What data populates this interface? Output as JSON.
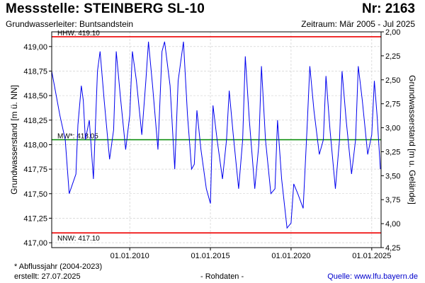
{
  "header": {
    "station": "Messstelle: STEINBERG  SL-10",
    "number": "Nr: 2163",
    "aquifer": "Grundwasserleiter: Buntsandstein",
    "period": "Zeitraum: Mär 2005 - Jul 2025"
  },
  "footer": {
    "footnote": "* Abflussjahr (2004-2023)",
    "created": "erstellt:  27.07.2025",
    "rawdata": "- Rohdaten -",
    "source": "Quelle: www.lfu.bayern.de"
  },
  "colors": {
    "series": "#0000ee",
    "max_line": "#ee0000",
    "mean_line": "#008800",
    "min_line": "#ee0000",
    "grid": "#c8c8c8"
  },
  "chart_data": {
    "type": "line",
    "xlabel": "",
    "ylabel": "Grundwasserstand [m ü. NN]",
    "y2label": "Grundwasserstand [m u. Gelände]",
    "xlim": [
      "2005-03-01",
      "2025-07-31"
    ],
    "ylim": [
      416.95,
      419.15
    ],
    "y2lim": [
      4.25,
      2.0
    ],
    "x_ticks": [
      {
        "date": "2010-01-01",
        "label": "01.01.2010"
      },
      {
        "date": "2015-01-01",
        "label": "01.01.2015"
      },
      {
        "date": "2020-01-01",
        "label": "01.01.2020"
      },
      {
        "date": "2025-01-01",
        "label": "01.01.2025"
      }
    ],
    "y_ticks": [
      {
        "value": 417.0,
        "label": "417,00"
      },
      {
        "value": 417.25,
        "label": "417,25"
      },
      {
        "value": 417.5,
        "label": "417,50"
      },
      {
        "value": 417.75,
        "label": "417,75"
      },
      {
        "value": 418.0,
        "label": "418,00"
      },
      {
        "value": 418.25,
        "label": "418,25"
      },
      {
        "value": 418.5,
        "label": "418,50"
      },
      {
        "value": 418.75,
        "label": "418,75"
      },
      {
        "value": 419.0,
        "label": "419,00"
      }
    ],
    "y2_ticks": [
      {
        "value": 2.0,
        "label": "2,00"
      },
      {
        "value": 2.25,
        "label": "2,25"
      },
      {
        "value": 2.5,
        "label": "2,50"
      },
      {
        "value": 2.75,
        "label": "2,75"
      },
      {
        "value": 3.0,
        "label": "3,00"
      },
      {
        "value": 3.25,
        "label": "3,25"
      },
      {
        "value": 3.5,
        "label": "3,50"
      },
      {
        "value": 3.75,
        "label": "3,75"
      },
      {
        "value": 4.0,
        "label": "4,00"
      },
      {
        "value": 4.25,
        "label": "4,25"
      }
    ],
    "reference_lines": [
      {
        "key": "hhw",
        "label": "HHW: 419.10",
        "value": 419.1
      },
      {
        "key": "mw",
        "label": "MW*: 418.05",
        "value": 418.05
      },
      {
        "key": "nnw",
        "label": "NNW: 417.10",
        "value": 417.1
      }
    ],
    "grid": true,
    "series": [
      {
        "x": [
          "2005-03-01",
          "2005-09-01",
          "2006-01-01",
          "2006-04-01",
          "2006-09-01",
          "2006-10-15",
          "2007-01-01",
          "2007-02-15",
          "2007-04-01",
          "2007-07-01",
          "2007-10-01",
          "2008-01-01",
          "2008-03-01",
          "2008-06-01",
          "2008-10-01",
          "2009-01-01",
          "2009-03-01",
          "2009-06-01",
          "2009-10-01",
          "2010-01-01",
          "2010-03-01",
          "2010-06-01",
          "2010-10-01",
          "2011-01-01",
          "2011-03-01",
          "2011-06-01",
          "2011-10-01",
          "2012-01-01",
          "2012-03-01",
          "2012-07-01",
          "2012-10-15",
          "2013-01-01",
          "2013-05-01",
          "2013-08-01",
          "2013-11-01",
          "2014-01-01",
          "2014-03-01",
          "2014-06-01",
          "2014-10-01",
          "2015-01-01",
          "2015-03-01",
          "2015-06-01",
          "2015-10-01",
          "2016-01-01",
          "2016-03-01",
          "2016-06-01",
          "2016-10-01",
          "2017-01-01",
          "2017-03-01",
          "2017-06-01",
          "2017-10-01",
          "2018-01-01",
          "2018-03-01",
          "2018-06-01",
          "2018-10-01",
          "2019-01-01",
          "2019-03-01",
          "2019-06-01",
          "2019-10-01",
          "2020-01-01",
          "2020-03-01",
          "2020-06-01",
          "2020-10-01",
          "2021-01-01",
          "2021-03-01",
          "2021-06-01",
          "2021-10-01",
          "2022-01-01",
          "2022-03-01",
          "2022-06-01",
          "2022-10-01",
          "2023-01-01",
          "2023-03-01",
          "2023-06-01",
          "2023-10-01",
          "2024-01-01",
          "2024-03-01",
          "2024-06-01",
          "2024-10-01",
          "2025-01-01",
          "2025-03-01",
          "2025-05-01",
          "2025-07-15"
        ],
        "y": [
          418.75,
          418.3,
          418.05,
          417.5,
          417.7,
          418.2,
          418.6,
          418.45,
          418.05,
          418.25,
          417.65,
          418.75,
          418.95,
          418.45,
          417.85,
          418.15,
          418.95,
          418.5,
          417.95,
          418.3,
          418.95,
          418.65,
          418.1,
          418.65,
          419.05,
          418.6,
          417.95,
          418.95,
          419.05,
          418.6,
          417.75,
          418.65,
          419.05,
          418.3,
          417.75,
          417.8,
          418.35,
          417.95,
          417.55,
          417.4,
          418.4,
          418.05,
          417.65,
          418.05,
          418.55,
          418.1,
          417.55,
          418.05,
          418.9,
          418.25,
          417.55,
          418.0,
          418.8,
          418.05,
          417.5,
          417.55,
          418.25,
          417.65,
          417.15,
          417.2,
          417.6,
          417.5,
          417.35,
          418.2,
          418.8,
          418.35,
          417.9,
          418.05,
          418.7,
          418.15,
          417.55,
          418.05,
          418.75,
          418.25,
          417.7,
          418.05,
          418.8,
          418.45,
          417.9,
          418.1,
          418.65,
          418.3,
          417.75
        ]
      }
    ]
  }
}
